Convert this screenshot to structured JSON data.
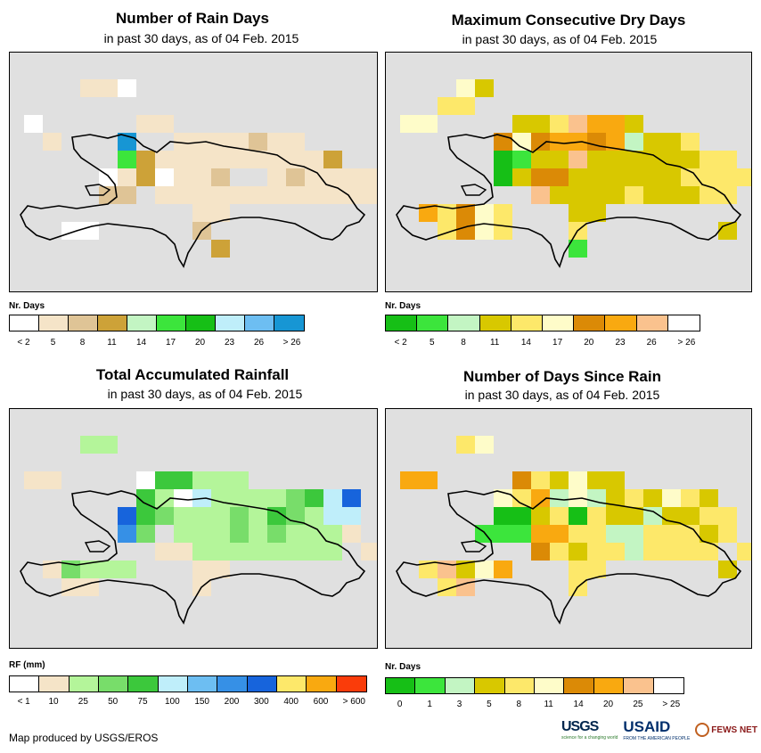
{
  "panels": [
    {
      "title": "Number of Rain Days",
      "subtitle": "in past 30 days, as of 04 Feb. 2015",
      "legend_title": "Nr. Days",
      "legend_colors": [
        "#ffffff",
        "#f5e4c8",
        "#dfc496",
        "#cda238",
        "#c3f5c3",
        "#3ce53c",
        "#16bf16",
        "#bfeefa",
        "#6dbef2",
        "#1796d4"
      ],
      "legend_labels": [
        "< 2",
        "5",
        "8",
        "11",
        "14",
        "17",
        "20",
        "23",
        "26",
        "> 26"
      ]
    },
    {
      "title": "Maximum Consecutive Dry Days",
      "subtitle": "in past 30 days, as of 04 Feb. 2015",
      "legend_title": "Nr. Days",
      "legend_colors": [
        "#16bf16",
        "#3ce53c",
        "#c3f5c3",
        "#d8c800",
        "#fde86a",
        "#fefcc9",
        "#db8a06",
        "#f9a910",
        "#fac28e",
        "#ffffff"
      ],
      "legend_labels": [
        "< 2",
        "5",
        "8",
        "11",
        "14",
        "17",
        "20",
        "23",
        "26",
        "> 26"
      ]
    },
    {
      "title": "Total Accumulated Rainfall",
      "subtitle": "in past 30 days, as of 04 Feb. 2015",
      "legend_title": "RF (mm)",
      "legend_colors": [
        "#ffffff",
        "#f5e4c8",
        "#b4f59a",
        "#78dd6a",
        "#3cc83c",
        "#bfeefa",
        "#6dbef2",
        "#3690e6",
        "#1764dc",
        "#fde86a",
        "#f9a910",
        "#fa3c0a"
      ],
      "legend_labels": [
        "< 1",
        "10",
        "25",
        "50",
        "75",
        "100",
        "150",
        "200",
        "300",
        "400",
        "600",
        "> 600"
      ]
    },
    {
      "title": "Number of Days Since Rain",
      "subtitle": "in past 30 days, as of 04 Feb. 2015",
      "legend_title": "Nr. Days",
      "legend_colors": [
        "#16bf16",
        "#3ce53c",
        "#c3f5c3",
        "#d8c800",
        "#fde86a",
        "#fefcc9",
        "#db8a06",
        "#f9a910",
        "#fac28e",
        "#ffffff"
      ],
      "legend_labels": [
        "0",
        "1",
        "3",
        "5",
        "8",
        "11",
        "14",
        "20",
        "25",
        "> 25"
      ]
    }
  ],
  "credit": "Map produced by USGS/EROS",
  "logos": {
    "usgs": "USGS",
    "usgs_tagline": "science for a changing world",
    "usaid": "USAID",
    "usaid_tagline": "FROM THE AMERICAN PEOPLE",
    "fews": "FEWS NET"
  }
}
